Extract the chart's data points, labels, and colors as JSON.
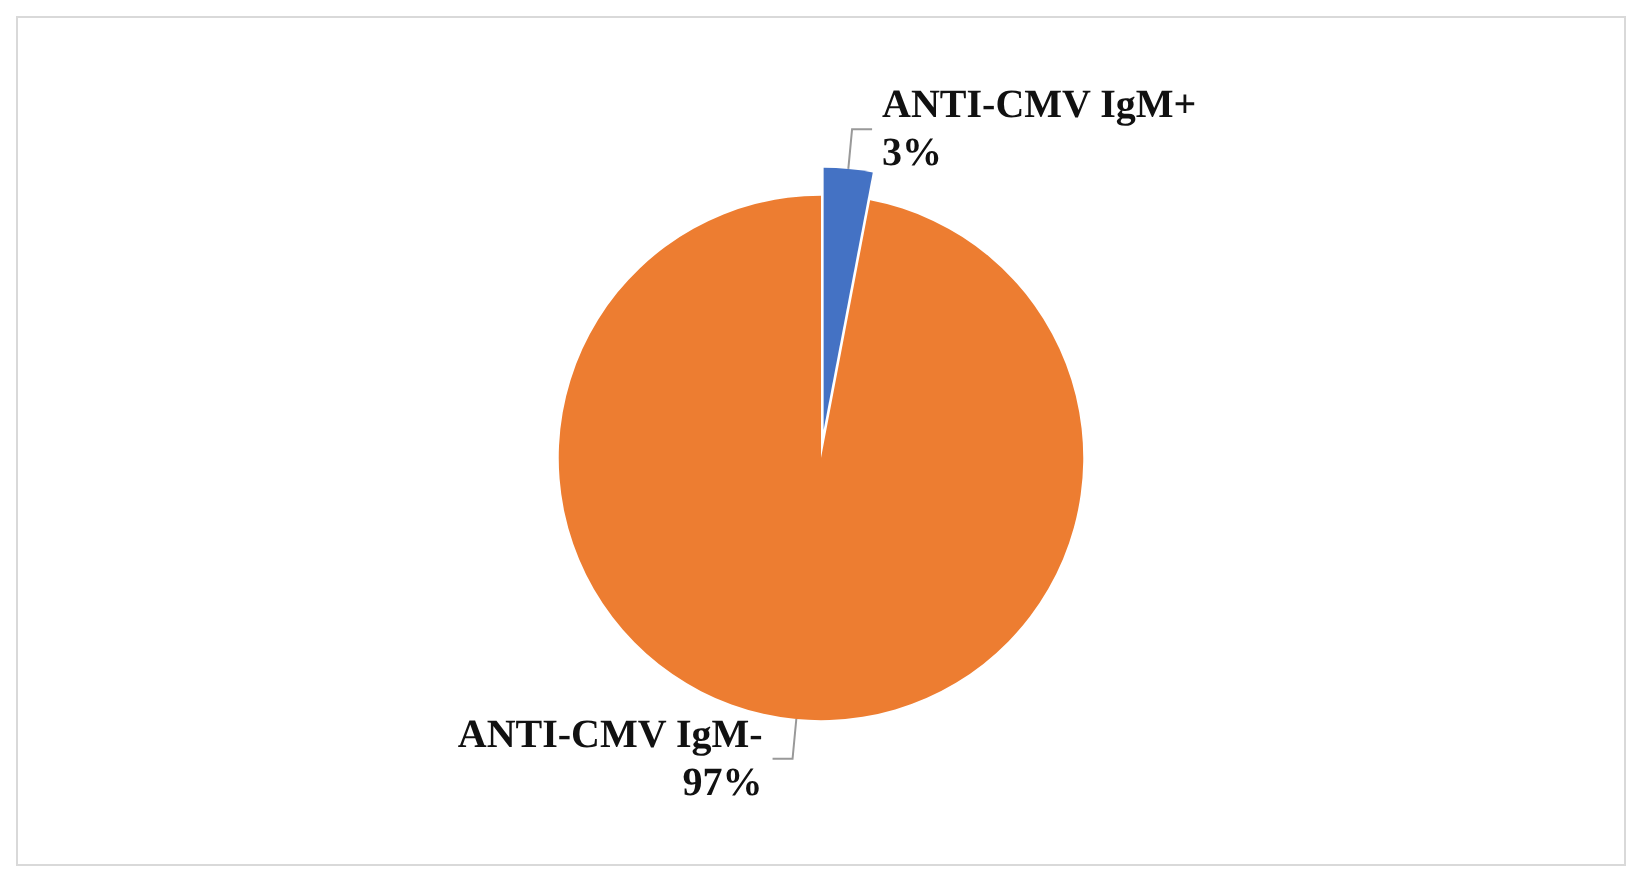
{
  "chart_data": {
    "type": "pie",
    "categories": [
      "ANTI-CMV IgM+",
      "ANTI-CMV IgM-"
    ],
    "values": [
      3,
      97
    ],
    "value_labels": [
      "3%",
      "97%"
    ],
    "colors": [
      "#4472c4",
      "#ed7d31"
    ],
    "legend": false
  }
}
